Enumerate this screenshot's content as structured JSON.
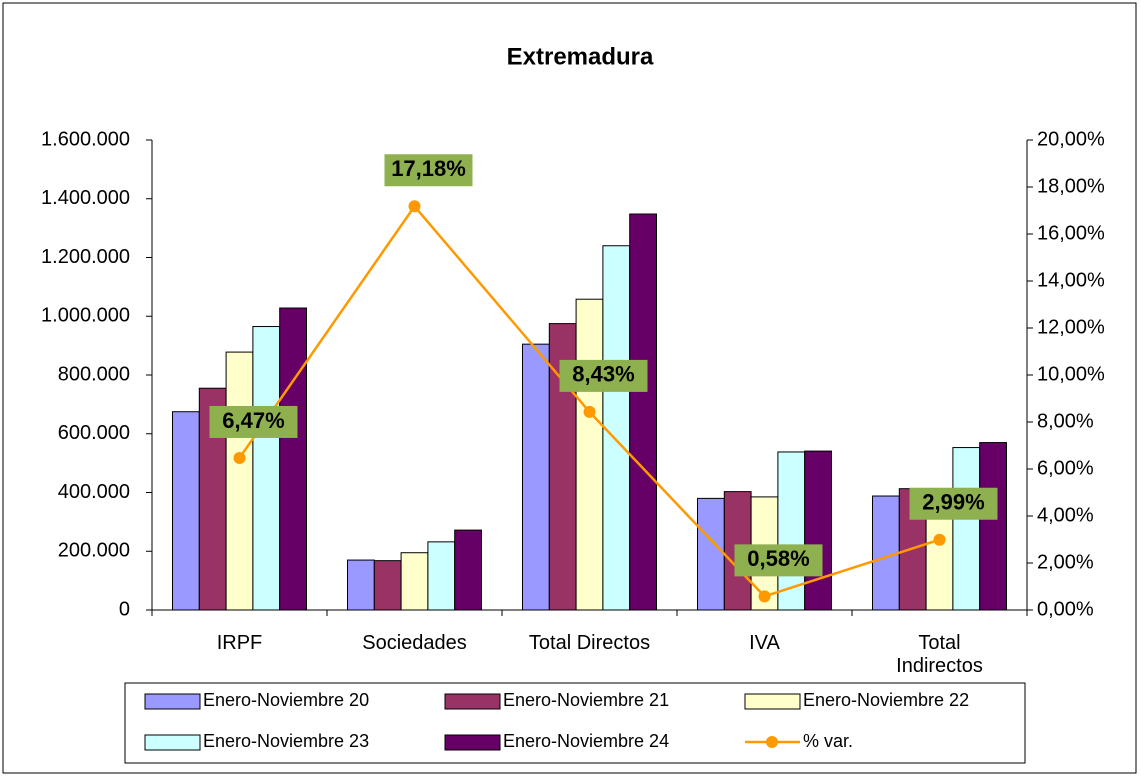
{
  "chart_data": {
    "type": "bar",
    "title": "Extremadura",
    "categories": [
      "IRPF",
      "Sociedades",
      "Total Directos",
      "IVA",
      "Total Indirectos"
    ],
    "series": [
      {
        "name": "Enero-Noviembre 20",
        "color": "#9999ff",
        "values": [
          675000,
          170000,
          905000,
          380000,
          388000
        ]
      },
      {
        "name": "Enero-Noviembre 21",
        "color": "#993366",
        "values": [
          755000,
          168000,
          975000,
          403000,
          413000
        ]
      },
      {
        "name": "Enero-Noviembre 22",
        "color": "#ffffcc",
        "values": [
          878000,
          195000,
          1058000,
          385000,
          398000
        ]
      },
      {
        "name": "Enero-Noviembre 23",
        "color": "#ccffff",
        "values": [
          965000,
          232000,
          1240000,
          538000,
          553000
        ]
      },
      {
        "name": "Enero-Noviembre 24",
        "color": "#660066",
        "values": [
          1028000,
          272000,
          1348000,
          541000,
          570000
        ]
      },
      {
        "name": "% var.",
        "type": "line",
        "axis": "y2",
        "color": "#ff9900",
        "values": [
          6.47,
          17.18,
          8.43,
          0.58,
          2.99
        ],
        "value_labels": [
          "6,47%",
          "17,18%",
          "8,43%",
          "0,58%",
          "2,99%"
        ],
        "label_color": "#8fb04f"
      }
    ],
    "ylim": [
      0,
      1600000
    ],
    "yticks": [
      0,
      {
        "value": 200000,
        "label": "200.000"
      },
      {
        "value": 400000,
        "label": "400.000"
      },
      {
        "value": 600000,
        "label": "600.000"
      },
      {
        "value": 800000,
        "label": "800.000"
      },
      {
        "value": 1000000,
        "label": "1.000.000"
      },
      {
        "value": 1200000,
        "label": "1.200.000"
      },
      {
        "value": 1400000,
        "label": "1.400.000"
      },
      {
        "value": 1600000,
        "label": "1.600.000"
      }
    ],
    "y2lim": [
      0,
      20
    ],
    "y2ticks": [
      {
        "value": 0,
        "label": "0,00%"
      },
      {
        "value": 2,
        "label": "2,00%"
      },
      {
        "value": 4,
        "label": "4,00%"
      },
      {
        "value": 6,
        "label": "6,00%"
      },
      {
        "value": 8,
        "label": "8,00%"
      },
      {
        "value": 10,
        "label": "10,00%"
      },
      {
        "value": 12,
        "label": "12,00%"
      },
      {
        "value": 14,
        "label": "14,00%"
      },
      {
        "value": 16,
        "label": "16,00%"
      },
      {
        "value": 18,
        "label": "18,00%"
      },
      {
        "value": 20,
        "label": "20,00%"
      }
    ],
    "legend": "bottom"
  }
}
